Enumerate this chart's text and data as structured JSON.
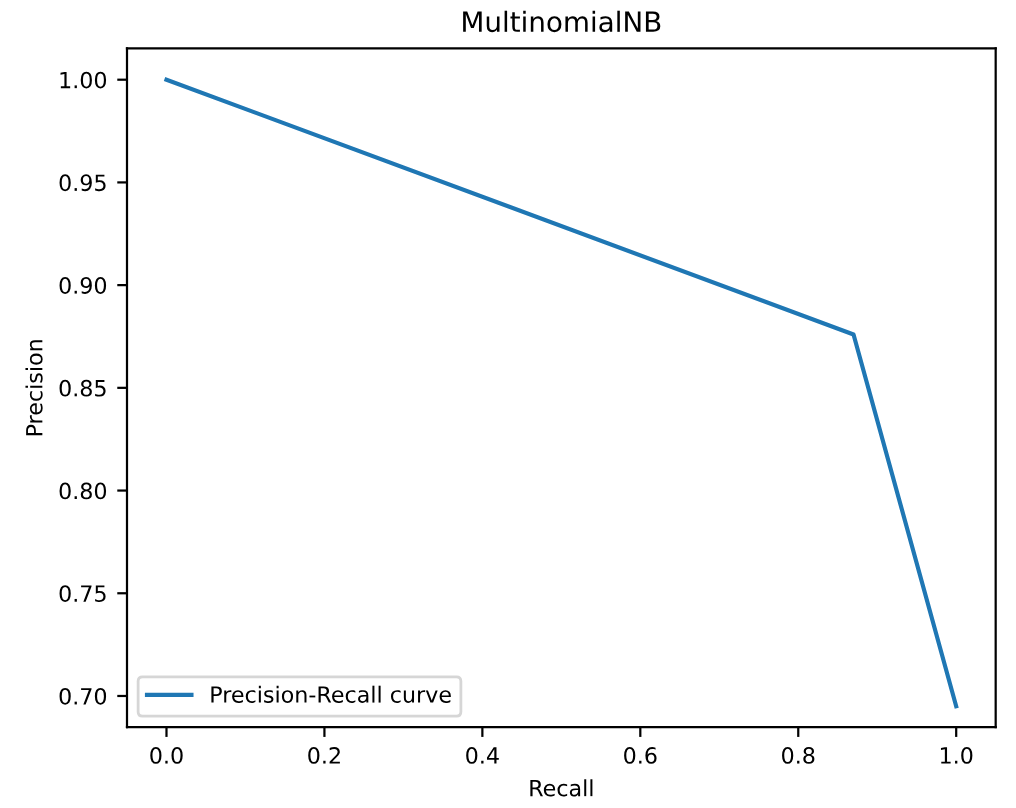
{
  "chart_data": {
    "type": "line",
    "title": "MultinomialNB",
    "xlabel": "Recall",
    "ylabel": "Precision",
    "x": [
      0.0,
      0.87,
      1.0
    ],
    "series": [
      {
        "name": "Precision-Recall curve",
        "color": "#1f77b4",
        "values": [
          1.0,
          0.876,
          0.695
        ]
      }
    ],
    "xlim": [
      -0.05,
      1.05
    ],
    "ylim": [
      0.6848,
      1.0152
    ],
    "xticks": [
      {
        "value": 0,
        "label": "0.0"
      },
      {
        "value": 0.2,
        "label": "0.2"
      },
      {
        "value": 0.4,
        "label": "0.4"
      },
      {
        "value": 0.6,
        "label": "0.6"
      },
      {
        "value": 0.8,
        "label": "0.8"
      },
      {
        "value": 1,
        "label": "1.0"
      }
    ],
    "yticks": [
      {
        "value": 0.7,
        "label": "0.70"
      },
      {
        "value": 0.75,
        "label": "0.75"
      },
      {
        "value": 0.8,
        "label": "0.80"
      },
      {
        "value": 0.85,
        "label": "0.85"
      },
      {
        "value": 0.9,
        "label": "0.90"
      },
      {
        "value": 0.95,
        "label": "0.95"
      },
      {
        "value": 1.0,
        "label": "1.00"
      }
    ],
    "legend": "bottom left"
  }
}
